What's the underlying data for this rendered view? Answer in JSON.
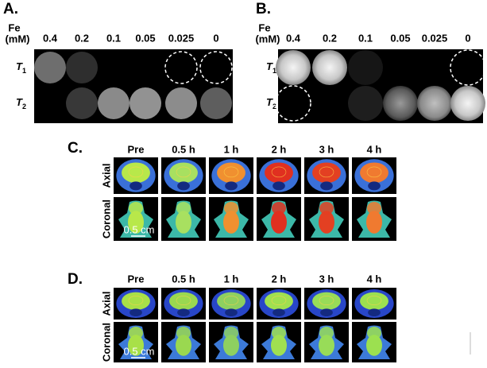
{
  "panels": [
    {
      "label": "A.",
      "fe_label": [
        "Fe",
        "(mM)"
      ],
      "concentrations": [
        "0.4",
        "0.2",
        "0.1",
        "0.05",
        "0.025",
        "0"
      ],
      "rows": [
        {
          "symbol": "T",
          "subscript": "1"
        },
        {
          "symbol": "T",
          "subscript": "2"
        }
      ]
    },
    {
      "label": "B.",
      "fe_label": [
        "Fe",
        "(mM)"
      ],
      "concentrations": [
        "0.4",
        "0.2",
        "0.1",
        "0.05",
        "0.025",
        "0"
      ],
      "rows": [
        {
          "symbol": "T",
          "subscript": "1"
        },
        {
          "symbol": "T",
          "subscript": "2"
        }
      ]
    },
    {
      "label": "C.",
      "times": [
        "Pre",
        "0.5 h",
        "1 h",
        "2 h",
        "3 h",
        "4 h"
      ],
      "views": [
        "Axial",
        "Coronal"
      ],
      "scale_bar": "0.5 cm"
    },
    {
      "label": "D.",
      "times": [
        "Pre",
        "0.5 h",
        "1 h",
        "2 h",
        "3 h",
        "4 h"
      ],
      "views": [
        "Axial",
        "Coronal"
      ],
      "scale_bar": "0.5 cm"
    }
  ]
}
